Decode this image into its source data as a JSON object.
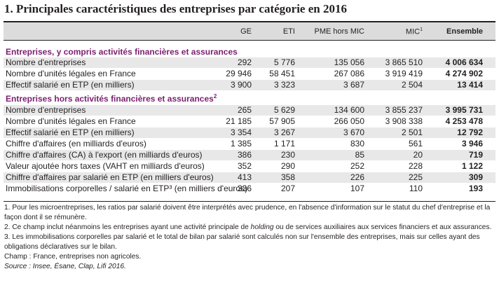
{
  "title": "1. Principales caractéristiques des entreprises par catégorie en 2016",
  "headers": {
    "ge": "GE",
    "eti": "ETI",
    "pme": "PME hors MIC",
    "mic": "MIC",
    "mic_sup": "1",
    "ens": "Ensemble"
  },
  "section1": {
    "title": "Entreprises, y compris activités financières et assurances",
    "rows": [
      {
        "label": "Nombre d'entreprises",
        "ge": "292",
        "eti": "5 776",
        "pme": "135 056",
        "mic": "3 865 510",
        "ens": "4 006 634"
      },
      {
        "label": "Nombre d'unités légales en France",
        "ge": "29 946",
        "eti": "58 451",
        "pme": "267 086",
        "mic": "3 919 419",
        "ens": "4 274 902"
      },
      {
        "label": "Effectif salarié en ETP (en milliers)",
        "ge": "3 900",
        "eti": "3 323",
        "pme": "3 687",
        "mic": "2 504",
        "ens": "13 414"
      }
    ]
  },
  "section2": {
    "title": "Entreprises hors activités financières et assurances",
    "title_sup": "2",
    "rows": [
      {
        "label": "Nombre d'entreprises",
        "ge": "265",
        "eti": "5 629",
        "pme": "134 600",
        "mic": "3 855 237",
        "ens": "3 995 731"
      },
      {
        "label": "Nombre d'unités légales en France",
        "ge": "21 185",
        "eti": "57 905",
        "pme": "266 050",
        "mic": "3 908 338",
        "ens": "4 253 478"
      },
      {
        "label": "Effectif salarié en ETP (en milliers)",
        "ge": "3 354",
        "eti": "3 267",
        "pme": "3 670",
        "mic": "2 501",
        "ens": "12 792"
      },
      {
        "label": "Chiffre d'affaires (en milliards d'euros)",
        "ge": "1 385",
        "eti": "1 171",
        "pme": "830",
        "mic": "561",
        "ens": "3 946"
      },
      {
        "label": "Chiffre d'affaires (CA) à l'export (en milliards d'euros)",
        "ge": "386",
        "eti": "230",
        "pme": "85",
        "mic": "20",
        "ens": "719"
      },
      {
        "label": "Valeur ajoutée hors taxes (VAHT en milliards d'euros)",
        "ge": "352",
        "eti": "290",
        "pme": "252",
        "mic": "228",
        "ens": "1 122"
      },
      {
        "label": "Chiffre d'affaires par salarié en ETP (en milliers d'euros)",
        "ge": "413",
        "eti": "358",
        "pme": "226",
        "mic": "225",
        "ens": "309"
      },
      {
        "label": "Immobilisations corporelles / salarié en ETP³ (en milliers d'euros)",
        "ge": "336",
        "eti": "207",
        "pme": "107",
        "mic": "110",
        "ens": "193"
      }
    ]
  },
  "notes": {
    "n1_line1": "1. Pour les microentreprises, les ratios par salarié doivent être interprétés avec prudence, en l'absence d'information sur le statut du chef d'entreprise et la",
    "n1_line2": "façon dont il se rémunère.",
    "n2_before": "2. Ce champ inclut néanmoins les entreprises ayant une activité principale de ",
    "n2_italic": "holding",
    "n2_after": " ou de services auxiliaires aux services financiers et aux assurances.",
    "n3_line1": "3. Les immobilisations corporelles par salarié et le total de bilan par salarié sont calculés non sur l'ensemble des entreprises, mais sur celles ayant des",
    "n3_line2": "obligations déclaratives sur le bilan.",
    "champ": "Champ : France, entreprises non agricoles.",
    "source": "Source : Insee, Ésane, Clap, Lifi 2016."
  }
}
